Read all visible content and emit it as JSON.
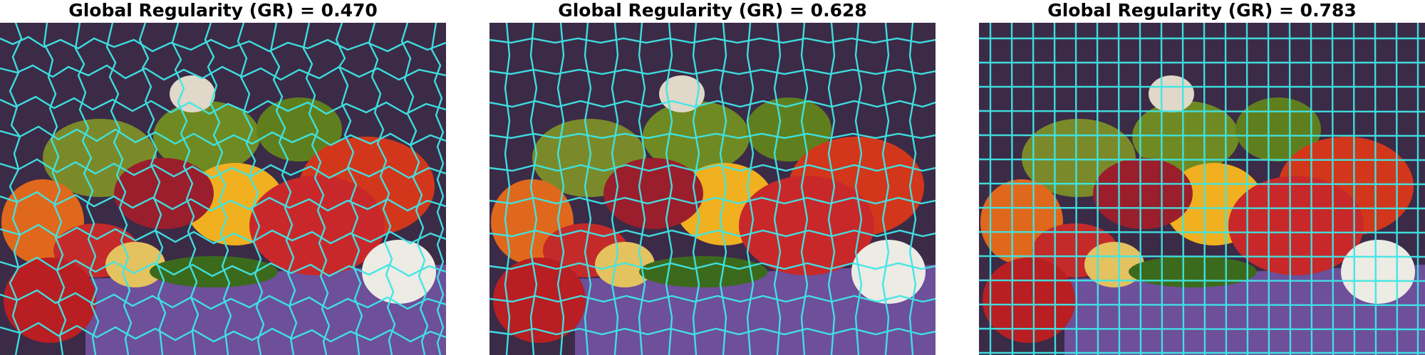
{
  "figure": {
    "panels": [
      {
        "title": "Global Regularity (GR) = 0.470",
        "scene": "superpixel segmentation of peppers image",
        "regularity": 0.47
      },
      {
        "title": "Global Regularity (GR) = 0.628",
        "scene": "superpixel segmentation of peppers image",
        "regularity": 0.628
      },
      {
        "title": "Global Regularity (GR) = 0.783",
        "scene": "superpixel segmentation of peppers image",
        "regularity": 0.783
      }
    ],
    "boundary_color": "#3fe6e6"
  }
}
